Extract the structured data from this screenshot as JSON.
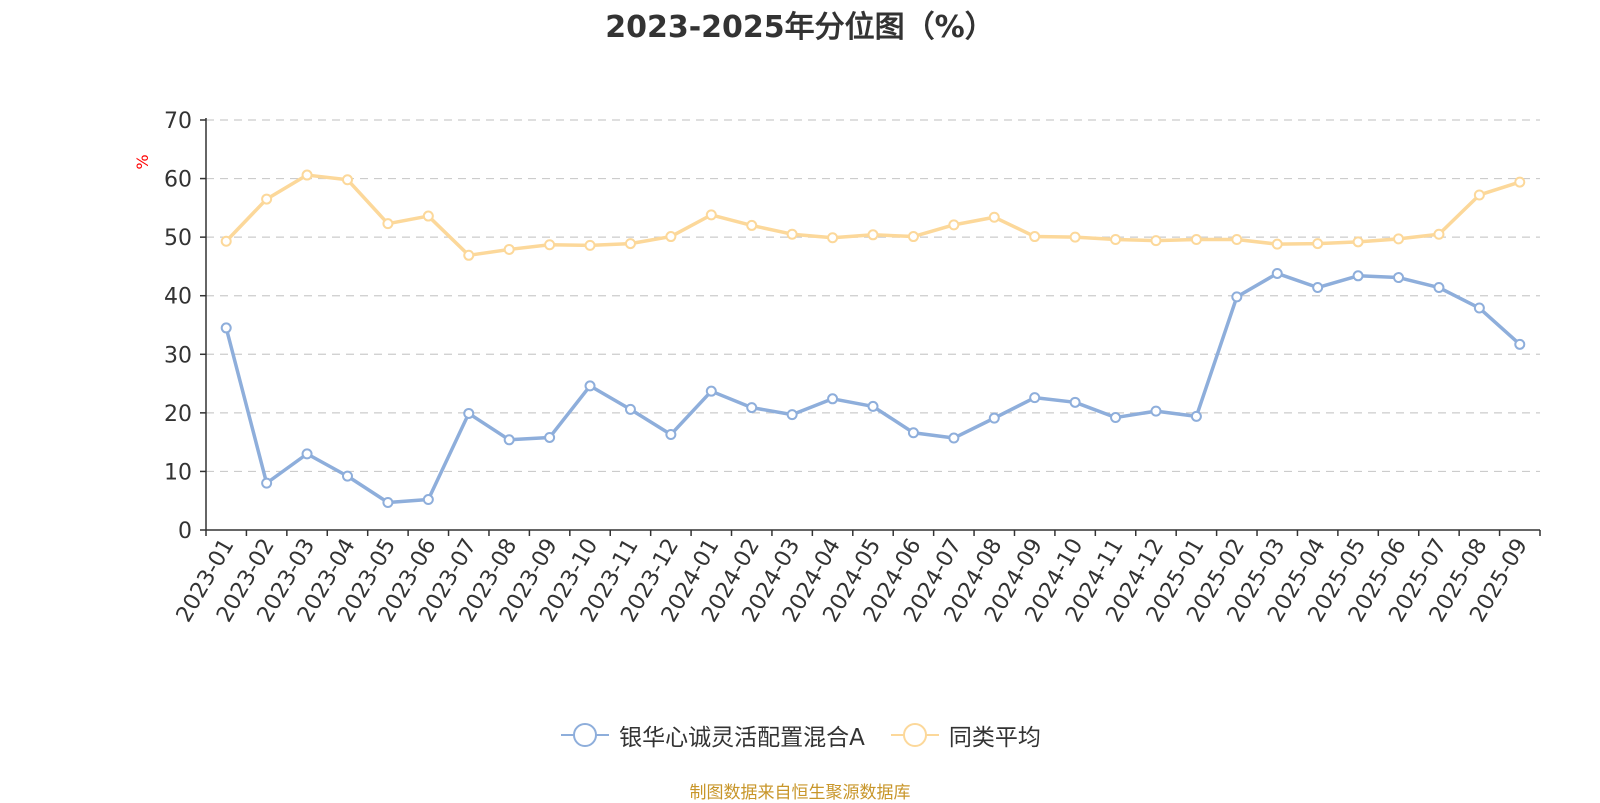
{
  "chart_data": {
    "type": "line",
    "title": "2023-2025年分位图（%）",
    "ylabel": "%",
    "xlabel": "",
    "ylim": [
      0,
      70
    ],
    "yticks": [
      "0",
      "10",
      "20",
      "30",
      "40",
      "50",
      "60",
      "70"
    ],
    "grid": true,
    "legend_position": "bottom",
    "categories": [
      "2023-01",
      "2023-02",
      "2023-03",
      "2023-04",
      "2023-05",
      "2023-06",
      "2023-07",
      "2023-08",
      "2023-09",
      "2023-10",
      "2023-11",
      "2023-12",
      "2024-01",
      "2024-02",
      "2024-03",
      "2024-04",
      "2024-05",
      "2024-06",
      "2024-07",
      "2024-08",
      "2024-09",
      "2024-10",
      "2024-11",
      "2024-12",
      "2025-01",
      "2025-02",
      "2025-03",
      "2025-04",
      "2025-05",
      "2025-06",
      "2025-07",
      "2025-08",
      "2025-09"
    ],
    "series": [
      {
        "name": "银华心诚灵活配置混合A",
        "color": "#8eaedb",
        "values": [
          34.5,
          8.0,
          13.0,
          9.2,
          4.7,
          5.2,
          19.9,
          15.4,
          15.8,
          24.6,
          20.6,
          16.3,
          23.7,
          20.9,
          19.7,
          22.4,
          21.1,
          16.6,
          15.7,
          19.1,
          22.6,
          21.8,
          19.2,
          20.3,
          19.4,
          39.8,
          43.8,
          41.4,
          43.4,
          43.1,
          41.4,
          37.9,
          31.7
        ]
      },
      {
        "name": "同类平均",
        "color": "#fcd89a",
        "values": [
          49.3,
          56.5,
          60.6,
          59.8,
          52.3,
          53.6,
          46.9,
          47.9,
          48.7,
          48.6,
          48.9,
          50.1,
          53.8,
          52.0,
          50.5,
          49.9,
          50.4,
          50.1,
          52.1,
          53.4,
          50.1,
          50.0,
          49.6,
          49.4,
          49.6,
          49.6,
          48.8,
          48.9,
          49.2,
          49.7,
          50.5,
          57.2,
          59.4
        ]
      }
    ]
  },
  "legend": {
    "items": [
      {
        "label": "银华心诚灵活配置混合A",
        "color": "#8eaedb"
      },
      {
        "label": "同类平均",
        "color": "#fcd89a"
      }
    ]
  },
  "source_note": "制图数据来自恒生聚源数据库"
}
